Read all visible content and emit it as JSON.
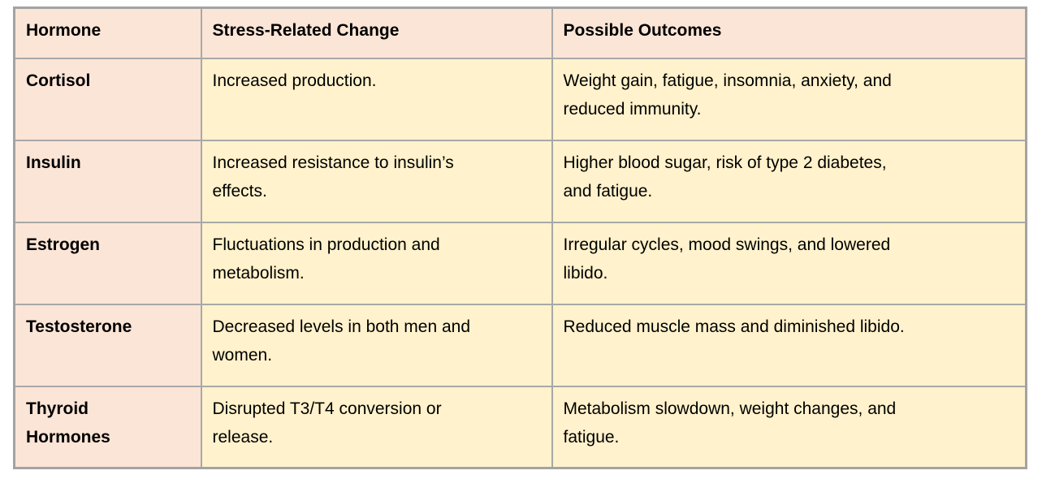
{
  "colors": {
    "header_and_hormone_bg": "#fbe5d6",
    "body_cell_bg": "#fff2cc",
    "grid_border": "#a8a8a8",
    "text": "#000000",
    "page_bg": "#ffffff"
  },
  "table": {
    "columns": [
      {
        "label": "Hormone"
      },
      {
        "label": "Stress-Related Change"
      },
      {
        "label": "Possible Outcomes"
      }
    ],
    "rows": [
      {
        "hormone": "Cortisol",
        "change": "Increased production.",
        "outcomes": "Weight gain, fatigue, insomnia, anxiety, and\nreduced immunity."
      },
      {
        "hormone": "Insulin",
        "change": "Increased resistance to insulin’s\neffects.",
        "outcomes": "Higher blood sugar, risk of type 2 diabetes,\nand fatigue."
      },
      {
        "hormone": "Estrogen",
        "change": "Fluctuations in production and\nmetabolism.",
        "outcomes": "Irregular cycles, mood swings, and lowered\nlibido."
      },
      {
        "hormone": "Testosterone",
        "change": "Decreased levels in both men and\nwomen.",
        "outcomes": "Reduced muscle mass and diminished libido."
      },
      {
        "hormone": "Thyroid\nHormones",
        "change": "Disrupted T3/T4 conversion or\nrelease.",
        "outcomes": "Metabolism slowdown, weight changes, and\nfatigue."
      }
    ]
  }
}
